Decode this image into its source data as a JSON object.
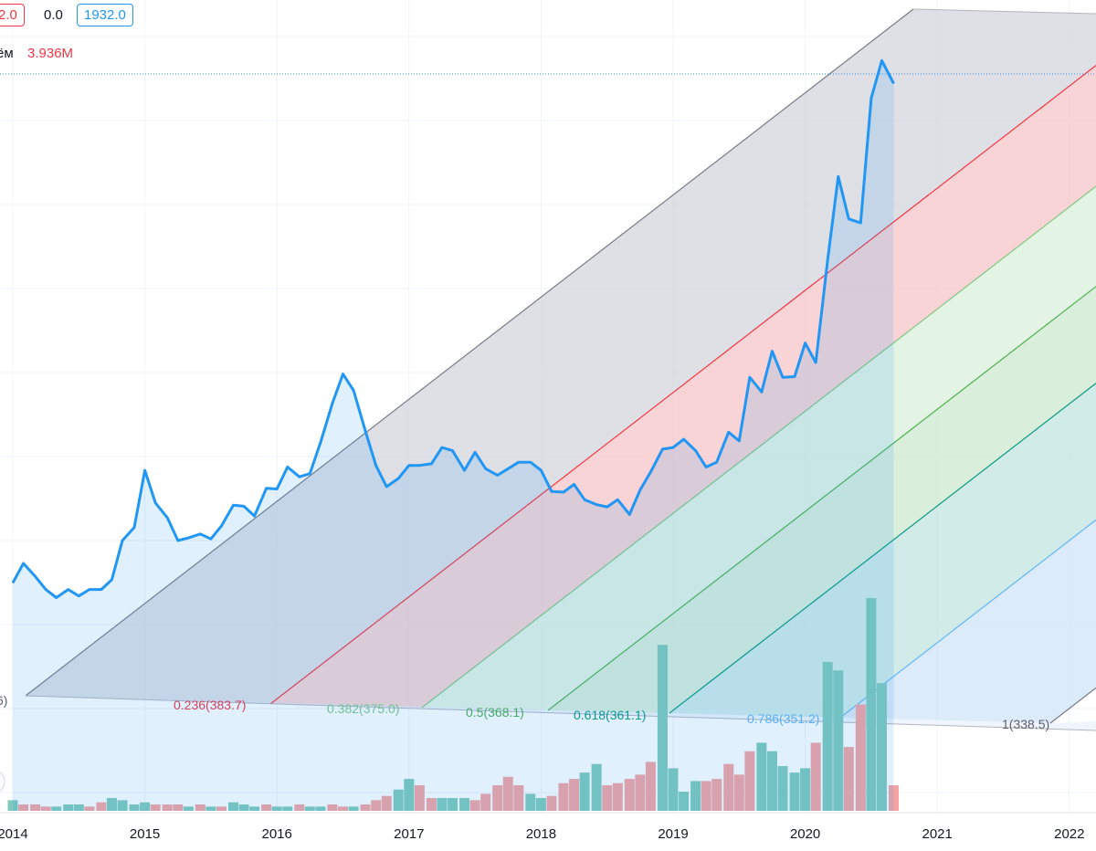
{
  "legend": {
    "box_left": "2.0",
    "middle": "0.0",
    "box_right": "1932.0",
    "volume_label": "ём",
    "volume_value": "3.936M"
  },
  "colors": {
    "price": "#2196f3",
    "volume_up": "#7fcabd",
    "volume_down": "#f5a3a3",
    "fib_channel": [
      "#787b86",
      "#f23645",
      "#81c784",
      "#4caf50",
      "#089981",
      "#64b5f6",
      "#787b86"
    ],
    "fib_fill": [
      "#d1d4dc",
      "#f7c3c6",
      "#d9f0da",
      "#cce9cd",
      "#bfe3df",
      "#cfe3f7"
    ]
  },
  "fib_labels": [
    {
      "text": "0.236(383.7)",
      "color": "#f23645"
    },
    {
      "text": "0.382(375.0)",
      "color": "#81c784"
    },
    {
      "text": "0.5(368.1)",
      "color": "#4caf50"
    },
    {
      "text": "0.618(361.1)",
      "color": "#089981"
    },
    {
      "text": "0.786(351.2)",
      "color": "#64b5f6"
    },
    {
      "text": "1(338.5)",
      "color": "#5d606b"
    },
    {
      "text": "6)",
      "color": "#5d606b"
    }
  ],
  "chart_data": {
    "type": "line",
    "xlabel": "",
    "ylabel": "",
    "x_ticks": [
      "2014",
      "2015",
      "2016",
      "2017",
      "2018",
      "2019",
      "2020",
      "2021",
      "2022"
    ],
    "xlim": [
      2014.0,
      2022.1
    ],
    "ylim": [
      0,
      2080
    ],
    "grid": true,
    "series": [
      {
        "type": "line",
        "points": [
          [
            2014.0,
            410
          ],
          [
            2014.08,
            470
          ],
          [
            2014.17,
            430
          ],
          [
            2014.25,
            390
          ],
          [
            2014.33,
            365
          ],
          [
            2014.42,
            390
          ],
          [
            2014.5,
            370
          ],
          [
            2014.58,
            390
          ],
          [
            2014.67,
            390
          ],
          [
            2014.75,
            420
          ],
          [
            2014.83,
            540
          ],
          [
            2014.92,
            580
          ],
          [
            2015.0,
            755
          ],
          [
            2015.08,
            655
          ],
          [
            2015.17,
            610
          ],
          [
            2015.25,
            540
          ],
          [
            2015.33,
            548
          ],
          [
            2015.42,
            560
          ],
          [
            2015.5,
            545
          ],
          [
            2015.58,
            585
          ],
          [
            2015.67,
            648
          ],
          [
            2015.75,
            645
          ],
          [
            2015.83,
            615
          ],
          [
            2015.92,
            700
          ],
          [
            2016.0,
            698
          ],
          [
            2016.08,
            765
          ],
          [
            2016.17,
            735
          ],
          [
            2016.25,
            745
          ],
          [
            2016.33,
            840
          ],
          [
            2016.42,
            960
          ],
          [
            2016.5,
            1050
          ],
          [
            2016.58,
            1000
          ],
          [
            2016.67,
            875
          ],
          [
            2016.75,
            770
          ],
          [
            2016.83,
            705
          ],
          [
            2016.92,
            730
          ],
          [
            2017.0,
            770
          ],
          [
            2017.08,
            770
          ],
          [
            2017.17,
            775
          ],
          [
            2017.25,
            825
          ],
          [
            2017.33,
            815
          ],
          [
            2017.42,
            755
          ],
          [
            2017.5,
            810
          ],
          [
            2017.58,
            760
          ],
          [
            2017.67,
            740
          ],
          [
            2017.75,
            760
          ],
          [
            2017.83,
            780
          ],
          [
            2017.92,
            780
          ],
          [
            2018.0,
            755
          ],
          [
            2018.08,
            690
          ],
          [
            2018.17,
            688
          ],
          [
            2018.25,
            712
          ],
          [
            2018.33,
            665
          ],
          [
            2018.42,
            650
          ],
          [
            2018.5,
            643
          ],
          [
            2018.58,
            665
          ],
          [
            2018.67,
            620
          ],
          [
            2018.75,
            695
          ],
          [
            2018.83,
            750
          ],
          [
            2018.92,
            820
          ],
          [
            2019.0,
            825
          ],
          [
            2019.08,
            850
          ],
          [
            2019.17,
            815
          ],
          [
            2019.25,
            765
          ],
          [
            2019.33,
            780
          ],
          [
            2019.42,
            872
          ],
          [
            2019.5,
            845
          ],
          [
            2019.58,
            1040
          ],
          [
            2019.67,
            995
          ],
          [
            2019.75,
            1120
          ],
          [
            2019.83,
            1040
          ],
          [
            2019.92,
            1042
          ],
          [
            2020.0,
            1145
          ],
          [
            2020.08,
            1085
          ],
          [
            2020.17,
            1400
          ],
          [
            2020.25,
            1655
          ],
          [
            2020.33,
            1525
          ],
          [
            2020.42,
            1513
          ],
          [
            2020.5,
            1895
          ],
          [
            2020.58,
            2010
          ],
          [
            2020.67,
            1940
          ]
        ],
        "last_value": 1932.0
      },
      {
        "type": "bar",
        "name": "volume",
        "bars": [
          [
            2014.0,
            0.05,
            "up"
          ],
          [
            2014.08,
            0.03,
            "down"
          ],
          [
            2014.17,
            0.03,
            "down"
          ],
          [
            2014.25,
            0.02,
            "down"
          ],
          [
            2014.33,
            0.02,
            "up"
          ],
          [
            2014.42,
            0.03,
            "up"
          ],
          [
            2014.5,
            0.03,
            "up"
          ],
          [
            2014.58,
            0.02,
            "down"
          ],
          [
            2014.67,
            0.04,
            "down"
          ],
          [
            2014.75,
            0.06,
            "up"
          ],
          [
            2014.83,
            0.05,
            "up"
          ],
          [
            2014.92,
            0.03,
            "up"
          ],
          [
            2015.0,
            0.04,
            "up"
          ],
          [
            2015.08,
            0.03,
            "down"
          ],
          [
            2015.17,
            0.03,
            "down"
          ],
          [
            2015.25,
            0.03,
            "down"
          ],
          [
            2015.33,
            0.02,
            "up"
          ],
          [
            2015.42,
            0.03,
            "down"
          ],
          [
            2015.5,
            0.02,
            "up"
          ],
          [
            2015.58,
            0.02,
            "down"
          ],
          [
            2015.67,
            0.04,
            "up"
          ],
          [
            2015.75,
            0.03,
            "up"
          ],
          [
            2015.83,
            0.02,
            "up"
          ],
          [
            2015.92,
            0.03,
            "down"
          ],
          [
            2016.0,
            0.02,
            "up"
          ],
          [
            2016.08,
            0.02,
            "up"
          ],
          [
            2016.17,
            0.03,
            "down"
          ],
          [
            2016.25,
            0.02,
            "up"
          ],
          [
            2016.33,
            0.02,
            "up"
          ],
          [
            2016.42,
            0.03,
            "down"
          ],
          [
            2016.5,
            0.02,
            "down"
          ],
          [
            2016.58,
            0.02,
            "up"
          ],
          [
            2016.67,
            0.03,
            "down"
          ],
          [
            2016.75,
            0.05,
            "down"
          ],
          [
            2016.83,
            0.07,
            "down"
          ],
          [
            2016.92,
            0.1,
            "up"
          ],
          [
            2017.0,
            0.15,
            "up"
          ],
          [
            2017.08,
            0.12,
            "down"
          ],
          [
            2017.17,
            0.06,
            "down"
          ],
          [
            2017.25,
            0.06,
            "up"
          ],
          [
            2017.33,
            0.06,
            "up"
          ],
          [
            2017.42,
            0.06,
            "up"
          ],
          [
            2017.5,
            0.05,
            "down"
          ],
          [
            2017.58,
            0.08,
            "down"
          ],
          [
            2017.67,
            0.12,
            "down"
          ],
          [
            2017.75,
            0.16,
            "down"
          ],
          [
            2017.83,
            0.12,
            "down"
          ],
          [
            2017.92,
            0.08,
            "up"
          ],
          [
            2018.0,
            0.06,
            "up"
          ],
          [
            2018.08,
            0.07,
            "down"
          ],
          [
            2018.17,
            0.13,
            "down"
          ],
          [
            2018.25,
            0.15,
            "down"
          ],
          [
            2018.33,
            0.18,
            "up"
          ],
          [
            2018.42,
            0.22,
            "up"
          ],
          [
            2018.5,
            0.12,
            "down"
          ],
          [
            2018.58,
            0.13,
            "down"
          ],
          [
            2018.67,
            0.15,
            "down"
          ],
          [
            2018.75,
            0.17,
            "down"
          ],
          [
            2018.83,
            0.23,
            "down"
          ],
          [
            2018.92,
            0.78,
            "up"
          ],
          [
            2019.0,
            0.2,
            "up"
          ],
          [
            2019.08,
            0.09,
            "up"
          ],
          [
            2019.17,
            0.14,
            "up"
          ],
          [
            2019.25,
            0.14,
            "down"
          ],
          [
            2019.33,
            0.15,
            "down"
          ],
          [
            2019.42,
            0.22,
            "down"
          ],
          [
            2019.5,
            0.17,
            "down"
          ],
          [
            2019.58,
            0.28,
            "down"
          ],
          [
            2019.67,
            0.32,
            "up"
          ],
          [
            2019.75,
            0.28,
            "up"
          ],
          [
            2019.83,
            0.21,
            "up"
          ],
          [
            2019.92,
            0.18,
            "up"
          ],
          [
            2020.0,
            0.2,
            "up"
          ],
          [
            2020.08,
            0.32,
            "down"
          ],
          [
            2020.17,
            0.7,
            "up"
          ],
          [
            2020.25,
            0.66,
            "up"
          ],
          [
            2020.33,
            0.3,
            "down"
          ],
          [
            2020.42,
            0.5,
            "down"
          ],
          [
            2020.5,
            1.0,
            "up"
          ],
          [
            2020.58,
            0.6,
            "up"
          ],
          [
            2020.67,
            0.12,
            "down"
          ]
        ]
      }
    ],
    "fib_channel": {
      "levels": [
        0,
        0.236,
        0.382,
        0.5,
        0.618,
        0.786,
        1
      ]
    }
  }
}
